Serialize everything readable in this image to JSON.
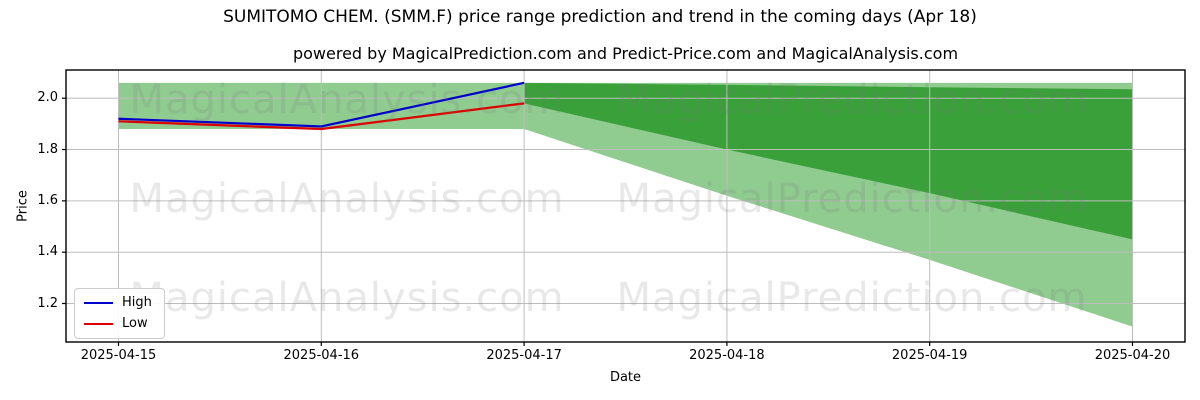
{
  "title": "SUMITOMO CHEM. (SMM.F) price range prediction and trend in the coming days (Apr 18)",
  "subtitle": "powered by MagicalPrediction.com and Predict-Price.com and MagicalAnalysis.com",
  "watermarks": {
    "left_text": "MagicalAnalysis.com",
    "right_text": "MagicalPrediction.com"
  },
  "legend": {
    "items": [
      {
        "label": "High",
        "color": "#0000cd"
      },
      {
        "label": "Low",
        "color": "#dd0000"
      }
    ]
  },
  "axes": {
    "x_label": "Date",
    "y_label": "Price"
  },
  "chart_data": {
    "type": "line",
    "title": "SUMITOMO CHEM. (SMM.F) price range prediction and trend in the coming days (Apr 18)",
    "xlabel": "Date",
    "ylabel": "Price",
    "categories": [
      "2025-04-15",
      "2025-04-16",
      "2025-04-17",
      "2025-04-18",
      "2025-04-19",
      "2025-04-20"
    ],
    "y_ticks": [
      "1.2",
      "1.4",
      "1.6",
      "1.8",
      "2.0"
    ],
    "ylim": [
      1.05,
      2.11
    ],
    "grid": true,
    "legend_position": "lower left",
    "series": [
      {
        "name": "High",
        "color": "#0000cd",
        "x_idx": [
          0,
          1,
          2
        ],
        "values": [
          1.92,
          1.89,
          2.06
        ]
      },
      {
        "name": "Low",
        "color": "#dd0000",
        "x_idx": [
          0,
          1,
          2
        ],
        "values": [
          1.91,
          1.88,
          1.98
        ]
      }
    ],
    "bands": [
      {
        "name": "outer-prediction-range",
        "color": "#90cb90",
        "x_idx": [
          0,
          1,
          2,
          3,
          4,
          5
        ],
        "top": [
          2.06,
          2.06,
          2.06,
          2.06,
          2.06,
          2.06
        ],
        "bottom": [
          1.88,
          1.88,
          1.88,
          1.62,
          1.37,
          1.11
        ]
      },
      {
        "name": "inner-prediction-range",
        "color": "#3aa03a",
        "x_idx": [
          2,
          3,
          4,
          5
        ],
        "top": [
          2.06,
          2.052,
          2.043,
          2.035
        ],
        "bottom": [
          1.98,
          1.8,
          1.63,
          1.45
        ]
      }
    ],
    "grid_color": "#bdbdbd"
  }
}
